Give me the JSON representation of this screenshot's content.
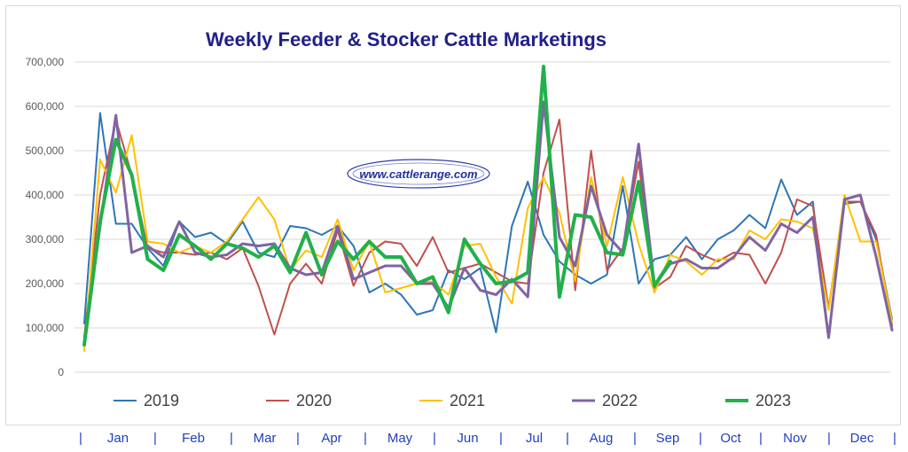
{
  "chart_data": {
    "type": "line",
    "title": "Weekly Feeder & Stocker Cattle Marketings",
    "watermark": "www.cattlerange.com",
    "ylim": [
      0,
      700000
    ],
    "yticks": [
      "0",
      "100,000",
      "200,000",
      "300,000",
      "400,000",
      "500,000",
      "600,000",
      "700,000"
    ],
    "ytick_values": [
      0,
      100000,
      200000,
      300000,
      400000,
      500000,
      600000,
      700000
    ],
    "weeks": 52,
    "grid": "horizontal",
    "legend_position": "bottom",
    "months": [
      "Jan",
      "Feb",
      "Mar",
      "Apr",
      "May",
      "Jun",
      "Jul",
      "Aug",
      "Sep",
      "Oct",
      "Nov",
      "Dec"
    ],
    "series": [
      {
        "name": "2019",
        "color": "#2e75b6",
        "width": 2,
        "values": [
          110000,
          585000,
          335000,
          335000,
          280000,
          240000,
          340000,
          305000,
          315000,
          290000,
          340000,
          270000,
          260000,
          330000,
          325000,
          310000,
          330000,
          285000,
          180000,
          200000,
          175000,
          130000,
          140000,
          230000,
          210000,
          235000,
          90000,
          330000,
          430000,
          310000,
          250000,
          220000,
          200000,
          220000,
          420000,
          200000,
          255000,
          265000,
          305000,
          255000,
          300000,
          320000,
          355000,
          325000,
          435000,
          355000,
          385000,
          80000,
          380000,
          385000,
          300000,
          120000
        ]
      },
      {
        "name": "2020",
        "color": "#c0504d",
        "width": 2,
        "values": [
          80000,
          400000,
          570000,
          445000,
          280000,
          270000,
          270000,
          265000,
          270000,
          255000,
          280000,
          195000,
          85000,
          200000,
          245000,
          200000,
          320000,
          195000,
          270000,
          295000,
          290000,
          240000,
          305000,
          225000,
          235000,
          245000,
          225000,
          205000,
          200000,
          450000,
          570000,
          185000,
          500000,
          230000,
          280000,
          475000,
          190000,
          215000,
          285000,
          265000,
          250000,
          270000,
          265000,
          200000,
          270000,
          390000,
          375000,
          145000,
          385000,
          385000,
          310000,
          105000
        ]
      },
      {
        "name": "2021",
        "color": "#ffc000",
        "width": 2,
        "values": [
          48000,
          480000,
          405000,
          535000,
          295000,
          290000,
          270000,
          285000,
          270000,
          295000,
          345000,
          395000,
          345000,
          230000,
          275000,
          260000,
          345000,
          230000,
          295000,
          180000,
          190000,
          200000,
          205000,
          175000,
          285000,
          290000,
          215000,
          155000,
          370000,
          440000,
          360000,
          205000,
          440000,
          285000,
          440000,
          290000,
          180000,
          265000,
          250000,
          220000,
          255000,
          255000,
          320000,
          300000,
          345000,
          340000,
          325000,
          140000,
          400000,
          295000,
          295000,
          115000
        ]
      },
      {
        "name": "2022",
        "color": "#8064a2",
        "width": 3,
        "values": [
          65000,
          330000,
          580000,
          270000,
          285000,
          260000,
          340000,
          270000,
          260000,
          265000,
          290000,
          285000,
          290000,
          235000,
          220000,
          225000,
          330000,
          210000,
          225000,
          240000,
          240000,
          200000,
          200000,
          145000,
          235000,
          185000,
          175000,
          210000,
          170000,
          610000,
          305000,
          240000,
          420000,
          310000,
          270000,
          515000,
          195000,
          245000,
          255000,
          235000,
          235000,
          260000,
          305000,
          275000,
          335000,
          315000,
          350000,
          78000,
          390000,
          400000,
          260000,
          95000
        ]
      },
      {
        "name": "2023",
        "color": "#22b04b",
        "width": 4,
        "values": [
          62000,
          340000,
          525000,
          445000,
          255000,
          230000,
          310000,
          285000,
          255000,
          290000,
          280000,
          260000,
          285000,
          225000,
          315000,
          220000,
          295000,
          255000,
          295000,
          260000,
          260000,
          200000,
          215000,
          135000,
          300000,
          245000,
          200000,
          205000,
          225000,
          690000,
          170000,
          355000,
          350000,
          270000,
          265000,
          430000,
          195000,
          250000
        ]
      }
    ]
  }
}
